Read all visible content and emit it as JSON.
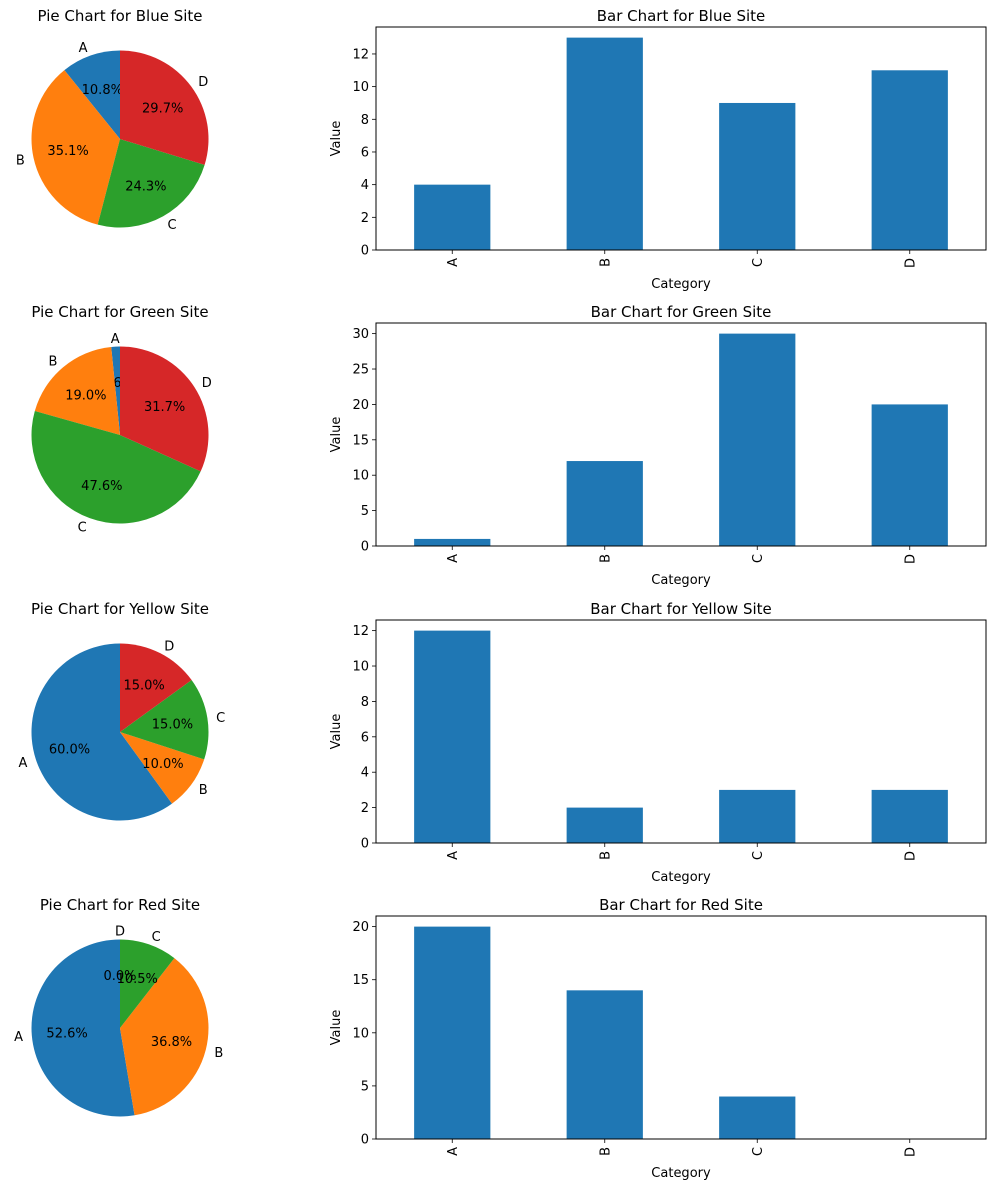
{
  "chart_data": [
    {
      "type": "pie",
      "title": "Pie Chart for Blue Site",
      "categories": [
        "A",
        "B",
        "C",
        "D"
      ],
      "values": [
        4,
        13,
        9,
        11
      ],
      "pct_labels": [
        "10.8%",
        "35.1%",
        "24.3%",
        "29.7%"
      ],
      "colors": [
        "#1f77b4",
        "#ff7f0e",
        "#2ca02c",
        "#d62728"
      ]
    },
    {
      "type": "bar",
      "title": "Bar Chart for Blue Site",
      "xlabel": "Category",
      "ylabel": "Value",
      "categories": [
        "A",
        "B",
        "C",
        "D"
      ],
      "values": [
        4,
        13,
        9,
        11
      ],
      "ylim": [
        0,
        13.65
      ],
      "yticks": [
        0,
        2,
        4,
        6,
        8,
        10,
        12
      ],
      "color": "#1f77b4",
      "grid": false
    },
    {
      "type": "pie",
      "title": "Pie Chart for Green Site",
      "categories": [
        "A",
        "B",
        "C",
        "D"
      ],
      "values": [
        1,
        12,
        30,
        20
      ],
      "pct_labels": [
        "1.6%",
        "19.0%",
        "47.6%",
        "31.7%"
      ],
      "colors": [
        "#1f77b4",
        "#ff7f0e",
        "#2ca02c",
        "#d62728"
      ]
    },
    {
      "type": "bar",
      "title": "Bar Chart for Green Site",
      "xlabel": "Category",
      "ylabel": "Value",
      "categories": [
        "A",
        "B",
        "C",
        "D"
      ],
      "values": [
        1,
        12,
        30,
        20
      ],
      "ylim": [
        0,
        31.5
      ],
      "yticks": [
        0,
        5,
        10,
        15,
        20,
        25,
        30
      ],
      "color": "#1f77b4",
      "grid": false
    },
    {
      "type": "pie",
      "title": "Pie Chart for Yellow Site",
      "categories": [
        "A",
        "B",
        "C",
        "D"
      ],
      "values": [
        12,
        2,
        3,
        3
      ],
      "pct_labels": [
        "60.0%",
        "10.0%",
        "15.0%",
        "15.0%"
      ],
      "colors": [
        "#1f77b4",
        "#ff7f0e",
        "#2ca02c",
        "#d62728"
      ]
    },
    {
      "type": "bar",
      "title": "Bar Chart for Yellow Site",
      "xlabel": "Category",
      "ylabel": "Value",
      "categories": [
        "A",
        "B",
        "C",
        "D"
      ],
      "values": [
        12,
        2,
        3,
        3
      ],
      "ylim": [
        0,
        12.6
      ],
      "yticks": [
        0,
        2,
        4,
        6,
        8,
        10,
        12
      ],
      "color": "#1f77b4",
      "grid": false
    },
    {
      "type": "pie",
      "title": "Pie Chart for Red Site",
      "categories": [
        "A",
        "B",
        "C",
        "D"
      ],
      "values": [
        20,
        14,
        4,
        0
      ],
      "pct_labels": [
        "52.6%",
        "36.8%",
        "10.5%",
        "0.0%"
      ],
      "colors": [
        "#1f77b4",
        "#ff7f0e",
        "#2ca02c",
        "#d62728"
      ]
    },
    {
      "type": "bar",
      "title": "Bar Chart for Red Site",
      "xlabel": "Category",
      "ylabel": "Value",
      "categories": [
        "A",
        "B",
        "C",
        "D"
      ],
      "values": [
        20,
        14,
        4,
        0
      ],
      "ylim": [
        0,
        21
      ],
      "yticks": [
        0,
        5,
        10,
        15,
        20
      ],
      "color": "#1f77b4",
      "grid": false
    }
  ]
}
